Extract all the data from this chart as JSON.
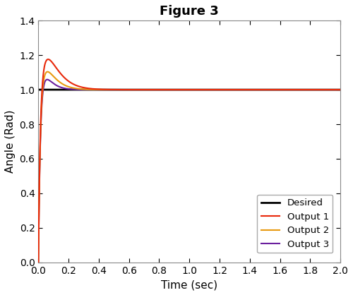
{
  "title": "Figure 3",
  "xlabel": "Time (sec)",
  "ylabel": "Angle (Rad)",
  "xlim": [
    0,
    2
  ],
  "ylim": [
    0,
    1.4
  ],
  "yticks": [
    0,
    0.2,
    0.4,
    0.6,
    0.8,
    1.0,
    1.2,
    1.4
  ],
  "xticks": [
    0,
    0.2,
    0.4,
    0.6,
    0.8,
    1.0,
    1.2,
    1.4,
    1.6,
    1.8,
    2.0
  ],
  "desired_value": 1.0,
  "desired_color": "#000000",
  "output1_color": "#e8280a",
  "output2_color": "#e89a10",
  "output3_color": "#6b1f9e",
  "legend_labels": [
    "Desired",
    "Output 1",
    "Output 2",
    "Output 3"
  ],
  "linewidth": 1.5,
  "desired_linewidth": 2.0,
  "background_color": "#ffffff",
  "figsize": [
    5.0,
    4.18
  ],
  "dpi": 100,
  "output1_A": 9.0,
  "output1_b": 18.0,
  "output1_rise": 80.0,
  "output2_A": 7.0,
  "output2_b": 22.0,
  "output2_rise": 80.0,
  "output3_A": 6.0,
  "output3_b": 28.0,
  "output3_rise": 80.0
}
